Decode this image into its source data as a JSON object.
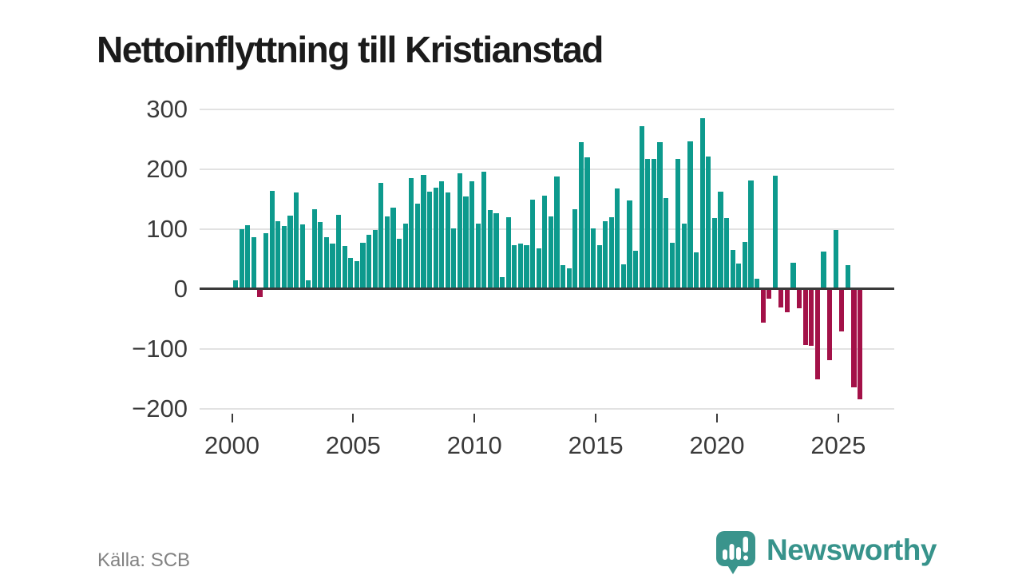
{
  "title": "Nettoinflyttning till Kristianstad",
  "source": "Källa: SCB",
  "branding": {
    "name": "Newsworthy",
    "logo_icon": "speech-bubble-bar-chart-icon"
  },
  "colors": {
    "positive_bar": "#0d9a8d",
    "negative_bar": "#a31148",
    "grid": "#e2e2e2",
    "axis": "#3a3a3a",
    "title_text": "#1b1b1b",
    "muted_text": "#828282",
    "brand_teal": "#37938b"
  },
  "chart_data": {
    "type": "bar",
    "title": "Nettoinflyttning till Kristianstad",
    "frequency": "quarterly",
    "start_period": "2000 Q1",
    "end_period": "2025 Q4",
    "x_ticks": [
      2000,
      2005,
      2010,
      2015,
      2020,
      2025
    ],
    "y_ticks": [
      300,
      200,
      100,
      0,
      -100,
      -200
    ],
    "ylim": [
      -200,
      300
    ],
    "grid": "horizontal",
    "legend": "none",
    "values": [
      15,
      100,
      107,
      87,
      -13,
      94,
      164,
      114,
      106,
      123,
      162,
      108,
      15,
      133,
      112,
      87,
      76,
      124,
      72,
      52,
      47,
      78,
      91,
      99,
      177,
      121,
      136,
      84,
      110,
      186,
      143,
      191,
      163,
      170,
      180,
      162,
      101,
      193,
      155,
      180,
      110,
      196,
      132,
      127,
      20,
      120,
      74,
      76,
      74,
      149,
      68,
      156,
      122,
      188,
      40,
      35,
      133,
      245,
      220,
      101,
      74,
      113,
      120,
      168,
      42,
      148,
      64,
      272,
      218,
      218,
      245,
      152,
      78,
      217,
      110,
      247,
      62,
      285,
      221,
      119,
      163,
      119,
      66,
      43,
      79,
      182,
      18,
      -56,
      -16,
      189,
      -30,
      -39,
      44,
      -32,
      -93,
      -94,
      -151,
      63,
      -119,
      99,
      -71,
      40,
      -164,
      -184
    ]
  }
}
